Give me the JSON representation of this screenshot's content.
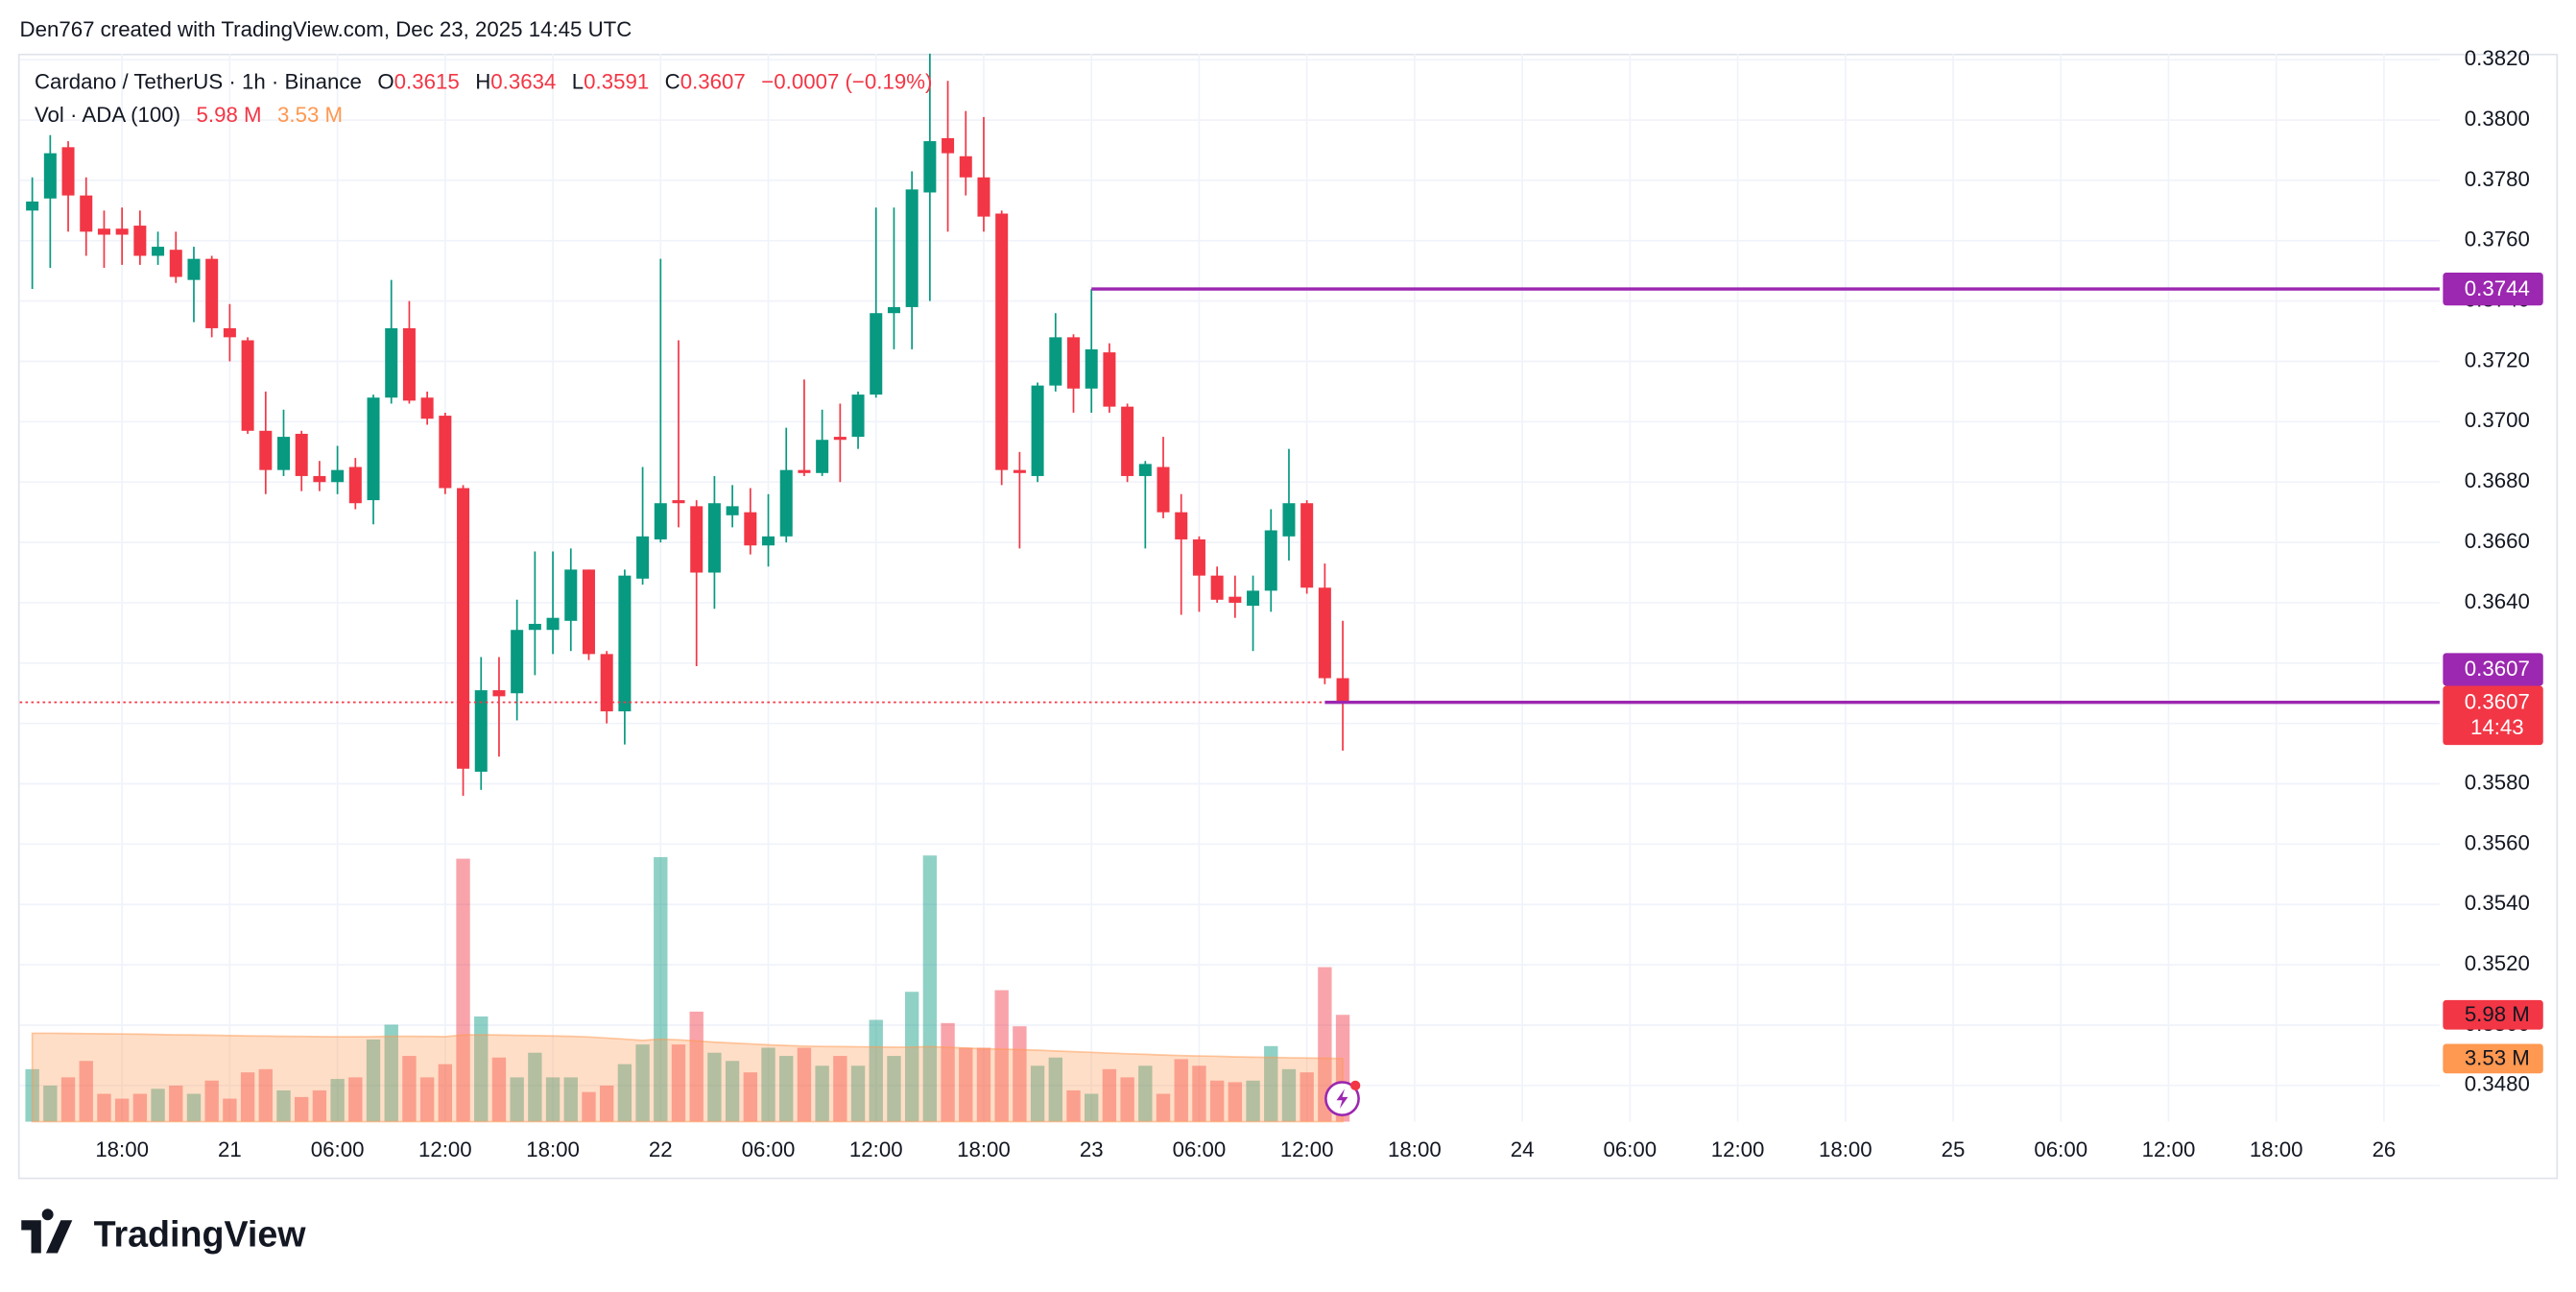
{
  "header": {
    "credit": "Den767 created with TradingView.com, Dec 23, 2025 14:45 UTC",
    "symbol": "Cardano / TetherUS · 1h · Binance",
    "ohlc_labels": [
      "O",
      "H",
      "L",
      "C"
    ],
    "change": "−0.0007 (−0.19%)",
    "volume_title": "Vol · ADA (100)"
  },
  "footer": "TradingView",
  "chart_data": {
    "type": "candlestick",
    "x": [
      -11,
      -10,
      -9,
      -8,
      -7,
      -6,
      -5,
      -4,
      -3,
      -2,
      -1,
      0,
      1,
      2,
      3,
      4,
      5,
      6,
      7,
      8,
      9,
      10,
      11,
      12,
      13,
      14,
      15,
      16,
      17,
      18,
      19,
      20,
      21,
      22,
      23,
      24,
      25,
      26,
      27,
      28,
      29,
      30,
      31,
      32,
      33,
      34,
      35,
      36,
      37,
      38,
      39,
      40,
      41,
      42,
      43,
      44,
      45,
      46,
      47,
      48,
      49,
      50,
      51,
      52,
      53,
      54,
      55,
      56,
      57,
      58,
      59,
      60,
      61,
      62
    ],
    "candles": {
      "open": [
        0.377,
        0.3774,
        0.3791,
        0.3775,
        0.3764,
        0.3764,
        0.3765,
        0.3755,
        0.3757,
        0.3747,
        0.3754,
        0.3731,
        0.3727,
        0.3697,
        0.3684,
        0.3696,
        0.3682,
        0.368,
        0.3685,
        0.3674,
        0.3708,
        0.3731,
        0.3708,
        0.3702,
        0.3678,
        0.3584,
        0.3611,
        0.361,
        0.3631,
        0.3631,
        0.3634,
        0.3651,
        0.3623,
        0.3604,
        0.3648,
        0.3661,
        0.3674,
        0.3672,
        0.365,
        0.3669,
        0.367,
        0.3659,
        0.3662,
        0.3684,
        0.3683,
        0.3695,
        0.3695,
        0.3709,
        0.3736,
        0.3738,
        0.3776,
        0.3794,
        0.3788,
        0.3781,
        0.3769,
        0.3684,
        0.3682,
        0.3712,
        0.3728,
        0.3711,
        0.3723,
        0.3705,
        0.3682,
        0.3685,
        0.367,
        0.3661,
        0.3649,
        0.3642,
        0.3639,
        0.3644,
        0.3662,
        0.3673,
        0.3645,
        0.3615
      ],
      "high": [
        0.3781,
        0.3795,
        0.3793,
        0.3781,
        0.377,
        0.3771,
        0.377,
        0.3763,
        0.3763,
        0.3758,
        0.3755,
        0.3739,
        0.3728,
        0.371,
        0.3704,
        0.3697,
        0.3687,
        0.3692,
        0.3688,
        0.3709,
        0.3747,
        0.374,
        0.371,
        0.3703,
        0.3679,
        0.3622,
        0.3622,
        0.3641,
        0.3657,
        0.3657,
        0.3658,
        0.3651,
        0.3624,
        0.3651,
        0.3685,
        0.3754,
        0.3727,
        0.3674,
        0.3682,
        0.3679,
        0.3678,
        0.3676,
        0.3698,
        0.3714,
        0.3704,
        0.3706,
        0.371,
        0.3771,
        0.3771,
        0.3783,
        0.3822,
        0.3813,
        0.3803,
        0.3801,
        0.377,
        0.369,
        0.3713,
        0.3736,
        0.3729,
        0.3744,
        0.3726,
        0.3706,
        0.3687,
        0.3695,
        0.3676,
        0.3662,
        0.3652,
        0.3649,
        0.3649,
        0.3671,
        0.3691,
        0.3674,
        0.3653,
        0.3634
      ],
      "low": [
        0.3744,
        0.3751,
        0.3763,
        0.3755,
        0.3751,
        0.3752,
        0.3752,
        0.3752,
        0.3746,
        0.3733,
        0.3728,
        0.372,
        0.3696,
        0.3676,
        0.3682,
        0.3677,
        0.3677,
        0.3676,
        0.3671,
        0.3666,
        0.3706,
        0.3706,
        0.3699,
        0.3676,
        0.3576,
        0.3578,
        0.3589,
        0.3601,
        0.3616,
        0.3623,
        0.3624,
        0.3621,
        0.36,
        0.3593,
        0.3646,
        0.366,
        0.3665,
        0.3619,
        0.3638,
        0.3665,
        0.3656,
        0.3652,
        0.366,
        0.3682,
        0.3682,
        0.368,
        0.3691,
        0.3708,
        0.3724,
        0.3724,
        0.374,
        0.3763,
        0.3775,
        0.3763,
        0.3679,
        0.3658,
        0.368,
        0.371,
        0.3703,
        0.3703,
        0.3703,
        0.368,
        0.3658,
        0.3668,
        0.3636,
        0.3637,
        0.364,
        0.3635,
        0.3624,
        0.3637,
        0.3654,
        0.3643,
        0.3613,
        0.3591
      ],
      "close": [
        0.3773,
        0.3789,
        0.3775,
        0.3763,
        0.3762,
        0.3762,
        0.3755,
        0.3758,
        0.3748,
        0.3754,
        0.3731,
        0.3728,
        0.3697,
        0.3684,
        0.3695,
        0.3682,
        0.368,
        0.3684,
        0.3673,
        0.3708,
        0.3731,
        0.3707,
        0.3701,
        0.3678,
        0.3585,
        0.3611,
        0.3609,
        0.3631,
        0.3633,
        0.3635,
        0.3651,
        0.3623,
        0.3604,
        0.3649,
        0.3662,
        0.3673,
        0.3673,
        0.365,
        0.3673,
        0.3672,
        0.3659,
        0.3662,
        0.3684,
        0.3683,
        0.3694,
        0.3694,
        0.3709,
        0.3736,
        0.3738,
        0.3777,
        0.3793,
        0.3789,
        0.3781,
        0.3768,
        0.3684,
        0.3683,
        0.3712,
        0.3728,
        0.3711,
        0.3724,
        0.3705,
        0.3682,
        0.3686,
        0.367,
        0.3661,
        0.3649,
        0.3641,
        0.364,
        0.3644,
        0.3664,
        0.3673,
        0.3645,
        0.3615,
        0.3607
      ]
    },
    "volume": [
      2.94,
      2.02,
      2.48,
      3.4,
      1.56,
      1.29,
      1.56,
      1.84,
      2.02,
      1.56,
      2.3,
      1.29,
      2.76,
      2.94,
      1.75,
      1.38,
      1.75,
      2.39,
      2.48,
      4.6,
      5.43,
      3.68,
      2.48,
      3.22,
      14.72,
      5.89,
      3.59,
      2.48,
      3.86,
      2.48,
      2.48,
      1.66,
      2.02,
      3.22,
      4.32,
      14.81,
      4.32,
      6.16,
      3.86,
      3.4,
      2.76,
      4.14,
      3.68,
      4.14,
      3.13,
      3.68,
      3.13,
      5.7,
      3.68,
      7.27,
      14.9,
      5.52,
      4.14,
      4.14,
      7.36,
      5.34,
      3.13,
      3.59,
      1.75,
      1.56,
      2.94,
      2.48,
      3.13,
      1.56,
      3.5,
      3.13,
      2.3,
      2.21,
      2.3,
      4.23,
      2.94,
      2.76,
      8.65,
      5.98
    ],
    "volume_ma": [
      4.95,
      4.95,
      4.94,
      4.93,
      4.92,
      4.91,
      4.9,
      4.88,
      4.86,
      4.85,
      4.84,
      4.82,
      4.8,
      4.79,
      4.78,
      4.77,
      4.76,
      4.75,
      4.75,
      4.76,
      4.78,
      4.78,
      4.77,
      4.76,
      4.85,
      4.86,
      4.85,
      4.83,
      4.82,
      4.8,
      4.78,
      4.74,
      4.68,
      4.62,
      4.55,
      4.62,
      4.58,
      4.52,
      4.45,
      4.4,
      4.35,
      4.3,
      4.26,
      4.23,
      4.21,
      4.2,
      4.19,
      4.18,
      4.17,
      4.17,
      4.2,
      4.16,
      4.12,
      4.08,
      4.06,
      4.03,
      4.0,
      3.96,
      3.92,
      3.88,
      3.84,
      3.8,
      3.77,
      3.73,
      3.7,
      3.68,
      3.66,
      3.63,
      3.61,
      3.6,
      3.58,
      3.56,
      3.55,
      3.53
    ],
    "volume_label": "5.98 M",
    "volume_ma_label": "3.53 M",
    "countdown": "14:43",
    "up_color": "#089981",
    "down_color": "#f23645",
    "ma_color": "#ff9850",
    "lines": [
      {
        "value": 0.3744,
        "start": 48,
        "color": "#9c27b0"
      },
      {
        "value": 0.3607,
        "start": 61,
        "color": "#9c27b0"
      }
    ],
    "xlim": [
      -11.7,
      123.1
    ],
    "xticks": [
      {
        "value": -6,
        "label": "18:00"
      },
      {
        "value": 0,
        "label": "21"
      },
      {
        "value": 6,
        "label": "06:00"
      },
      {
        "value": 12,
        "label": "12:00"
      },
      {
        "value": 18,
        "label": "18:00"
      },
      {
        "value": 24,
        "label": "22"
      },
      {
        "value": 30,
        "label": "06:00"
      },
      {
        "value": 36,
        "label": "12:00"
      },
      {
        "value": 42,
        "label": "18:00"
      },
      {
        "value": 48,
        "label": "23"
      },
      {
        "value": 54,
        "label": "06:00"
      },
      {
        "value": 60,
        "label": "12:00"
      },
      {
        "value": 66,
        "label": "18:00"
      },
      {
        "value": 72,
        "label": "24"
      },
      {
        "value": 78,
        "label": "06:00"
      },
      {
        "value": 84,
        "label": "12:00"
      },
      {
        "value": 90,
        "label": "18:00"
      },
      {
        "value": 96,
        "label": "25"
      },
      {
        "value": 102,
        "label": "06:00"
      },
      {
        "value": 108,
        "label": "12:00"
      },
      {
        "value": 114,
        "label": "18:00"
      },
      {
        "value": 120,
        "label": "26"
      }
    ],
    "ylim": [
      0.3468,
      0.3822
    ],
    "yticks": [
      {
        "value": 0.348,
        "label": "0.3480"
      },
      {
        "value": 0.35,
        "label": "0.3500"
      },
      {
        "value": 0.352,
        "label": "0.3520"
      },
      {
        "value": 0.354,
        "label": "0.3540"
      },
      {
        "value": 0.356,
        "label": "0.3560"
      },
      {
        "value": 0.358,
        "label": "0.3580"
      },
      {
        "value": 0.36,
        "label": "0.3600"
      },
      {
        "value": 0.362,
        "label": "0.3620"
      },
      {
        "value": 0.364,
        "label": "0.3640"
      },
      {
        "value": 0.366,
        "label": "0.3660"
      },
      {
        "value": 0.368,
        "label": "0.3680"
      },
      {
        "value": 0.37,
        "label": "0.3700"
      },
      {
        "value": 0.372,
        "label": "0.3720"
      },
      {
        "value": 0.374,
        "label": "0.3740"
      },
      {
        "value": 0.376,
        "label": "0.3760"
      },
      {
        "value": 0.378,
        "label": "0.3780"
      },
      {
        "value": 0.38,
        "label": "0.3800"
      },
      {
        "value": 0.382,
        "label": "0.3820"
      }
    ],
    "grid": true
  }
}
